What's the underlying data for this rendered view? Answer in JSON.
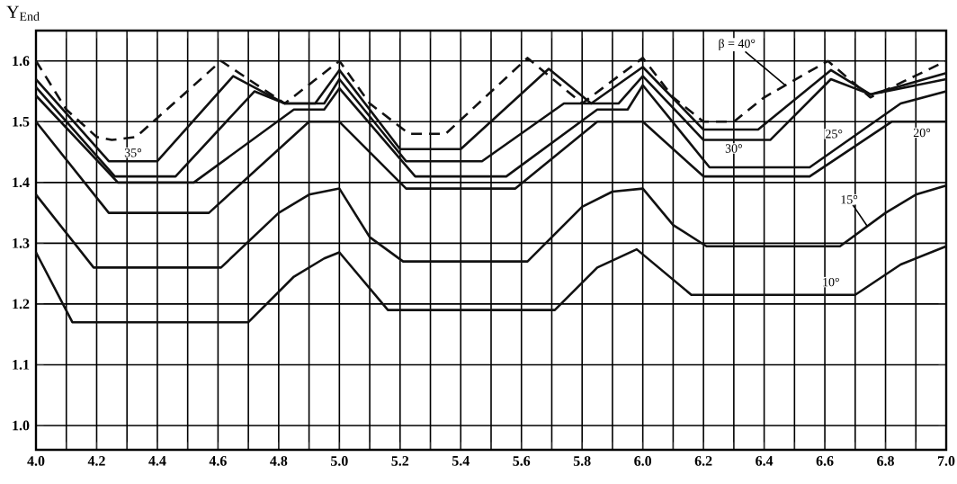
{
  "chart_data": {
    "type": "line",
    "ylabel": "Y$_{End}$",
    "xlim": [
      4.0,
      7.0
    ],
    "ylim": [
      0.96,
      1.65
    ],
    "xticks": [
      {
        "value": 4.0,
        "label": "4.0"
      },
      {
        "value": 4.1,
        "label": null
      },
      4.2,
      {
        "value": 4.3,
        "label": null
      },
      4.4,
      {
        "value": 4.5,
        "label": null
      },
      4.6,
      {
        "value": 4.7,
        "label": null
      },
      4.8,
      {
        "value": 4.9,
        "label": null
      },
      {
        "value": 5.0,
        "label": "5.0"
      },
      {
        "value": 5.1,
        "label": null
      },
      5.2,
      {
        "value": 5.3,
        "label": null
      },
      5.4,
      {
        "value": 5.5,
        "label": null
      },
      5.6,
      {
        "value": 5.7,
        "label": null
      },
      5.8,
      {
        "value": 5.9,
        "label": null
      },
      {
        "value": 6.0,
        "label": "6.0"
      },
      {
        "value": 6.1,
        "label": null
      },
      6.2,
      {
        "value": 6.3,
        "label": null
      },
      6.4,
      {
        "value": 6.5,
        "label": null
      },
      6.6,
      {
        "value": 6.7,
        "label": null
      },
      6.8,
      {
        "value": 6.9,
        "label": null
      },
      {
        "value": 7.0,
        "label": "7.0"
      }
    ],
    "yticks": [
      {
        "value": 1.0,
        "label": "1.0"
      },
      1.1,
      1.2,
      1.3,
      1.4,
      1.5,
      1.6
    ],
    "grid": true,
    "legend": false,
    "marker": "none",
    "series": [
      {
        "name": "β = 40°",
        "color": "#111111",
        "line_style": "dashed",
        "x": [
          4.0,
          4.1,
          4.2,
          4.25,
          4.33,
          4.61,
          4.82,
          5.0,
          5.1,
          5.23,
          5.35,
          5.43,
          5.62,
          5.8,
          6.0,
          6.1,
          6.2,
          6.3,
          6.4,
          6.61,
          6.75,
          7.0
        ],
        "values": [
          1.6,
          1.52,
          1.475,
          1.47,
          1.475,
          1.6,
          1.53,
          1.6,
          1.53,
          1.48,
          1.48,
          1.517,
          1.605,
          1.53,
          1.605,
          1.54,
          1.5,
          1.5,
          1.54,
          1.6,
          1.54,
          1.6
        ]
      },
      {
        "name": "35°",
        "color": "#111111",
        "line_style": "solid",
        "x": [
          4.0,
          4.24,
          4.4,
          4.65,
          4.82,
          4.92,
          5.0,
          5.2,
          5.4,
          5.69,
          5.83,
          6.0,
          6.2,
          6.38,
          6.62,
          6.75,
          7.0
        ],
        "values": [
          1.57,
          1.435,
          1.435,
          1.575,
          1.53,
          1.53,
          1.585,
          1.455,
          1.455,
          1.587,
          1.53,
          1.59,
          1.487,
          1.487,
          1.585,
          1.545,
          1.58
        ]
      },
      {
        "name": "30°",
        "color": "#111111",
        "line_style": "solid",
        "x": [
          4.0,
          4.26,
          4.46,
          4.72,
          4.82,
          4.95,
          5.0,
          5.22,
          5.47,
          5.74,
          5.92,
          6.0,
          6.2,
          6.42,
          6.62,
          6.75,
          7.0
        ],
        "values": [
          1.557,
          1.41,
          1.41,
          1.55,
          1.53,
          1.53,
          1.57,
          1.435,
          1.435,
          1.53,
          1.53,
          1.575,
          1.47,
          1.47,
          1.57,
          1.545,
          1.57
        ]
      },
      {
        "name": "25°",
        "color": "#111111",
        "line_style": "solid",
        "x": [
          4.0,
          4.27,
          4.52,
          4.85,
          4.95,
          5.0,
          5.25,
          5.55,
          5.85,
          5.95,
          6.0,
          6.22,
          6.55,
          6.85,
          7.0
        ],
        "values": [
          1.543,
          1.4,
          1.4,
          1.52,
          1.52,
          1.555,
          1.41,
          1.41,
          1.52,
          1.52,
          1.56,
          1.425,
          1.425,
          1.53,
          1.55
        ]
      },
      {
        "name": "20°",
        "color": "#111111",
        "line_style": "solid",
        "x": [
          4.0,
          4.24,
          4.57,
          4.9,
          5.0,
          5.22,
          5.58,
          5.85,
          6.0,
          6.2,
          6.55,
          6.82,
          7.0
        ],
        "values": [
          1.5,
          1.35,
          1.35,
          1.5,
          1.5,
          1.39,
          1.39,
          1.5,
          1.5,
          1.41,
          1.41,
          1.5,
          1.5
        ]
      },
      {
        "name": "15°",
        "color": "#111111",
        "line_style": "solid",
        "x": [
          4.0,
          4.19,
          4.61,
          4.8,
          4.9,
          5.0,
          5.1,
          5.21,
          5.62,
          5.8,
          5.9,
          6.0,
          6.1,
          6.21,
          6.65,
          6.8,
          6.9,
          7.0
        ],
        "values": [
          1.38,
          1.26,
          1.26,
          1.35,
          1.38,
          1.39,
          1.31,
          1.27,
          1.27,
          1.36,
          1.385,
          1.39,
          1.33,
          1.295,
          1.295,
          1.35,
          1.38,
          1.395
        ]
      },
      {
        "name": "10°",
        "color": "#111111",
        "line_style": "solid",
        "x": [
          4.0,
          4.12,
          4.7,
          4.85,
          4.95,
          5.0,
          5.16,
          5.71,
          5.85,
          5.98,
          6.16,
          6.7,
          6.85,
          7.0
        ],
        "values": [
          1.285,
          1.17,
          1.17,
          1.245,
          1.275,
          1.285,
          1.19,
          1.19,
          1.26,
          1.29,
          1.215,
          1.215,
          1.265,
          1.295
        ]
      }
    ]
  }
}
